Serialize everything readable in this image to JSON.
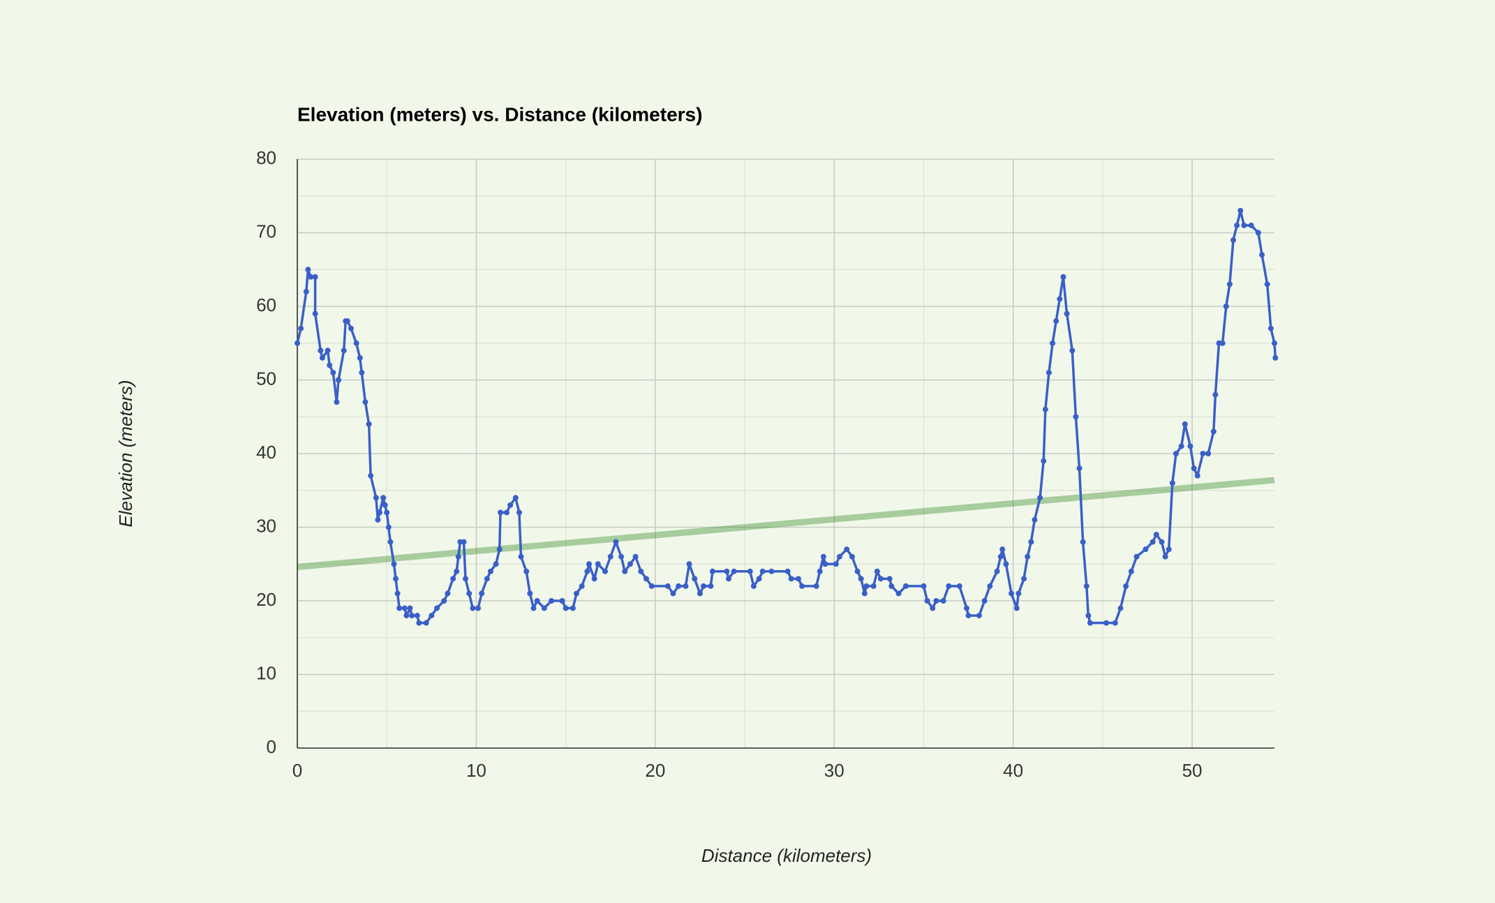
{
  "chart_data": {
    "type": "line",
    "title": "Elevation (meters) vs. Distance (kilometers)",
    "x_label": "Distance (kilometers)",
    "y_label": "Elevation (meters)",
    "xlim": [
      0,
      54.6
    ],
    "xticks": [
      0,
      10,
      20,
      30,
      40,
      50
    ],
    "xminorticks": [
      5,
      15,
      25,
      35,
      45
    ],
    "ylim": [
      0,
      80
    ],
    "yticks": [
      0,
      10,
      20,
      30,
      40,
      50,
      60,
      70,
      80
    ],
    "yminorticks": [
      5,
      15,
      25,
      35,
      45,
      55,
      65,
      75
    ],
    "grid": true,
    "series": [
      {
        "color": "#3a5fc8",
        "markers": true,
        "x": [
          0,
          0.2,
          0.5,
          0.6,
          0.75,
          1.0,
          1.0,
          1.3,
          1.4,
          1.7,
          1.8,
          2.0,
          2.2,
          2.3,
          2.6,
          2.7,
          2.8,
          3.0,
          3.3,
          3.5,
          3.6,
          3.8,
          4.0,
          4.1,
          4.4,
          4.5,
          4.6,
          4.8,
          4.9,
          5.0,
          5.1,
          5.2,
          5.4,
          5.5,
          5.6,
          5.7,
          6.0,
          6.1,
          6.3,
          6.4,
          6.7,
          6.8,
          7.2,
          7.5,
          7.8,
          8.2,
          8.4,
          8.7,
          8.9,
          9.0,
          9.1,
          9.3,
          9.4,
          9.6,
          9.8,
          10.1,
          10.3,
          10.6,
          10.8,
          11.1,
          11.3,
          11.35,
          11.7,
          11.9,
          12.2,
          12.4,
          12.5,
          12.8,
          13.0,
          13.2,
          13.4,
          13.8,
          14.2,
          14.8,
          15.0,
          15.4,
          15.6,
          15.9,
          16.2,
          16.3,
          16.6,
          16.8,
          17.2,
          17.5,
          17.8,
          18.1,
          18.3,
          18.6,
          18.9,
          19.2,
          19.5,
          19.8,
          20.7,
          21.0,
          21.3,
          21.7,
          21.9,
          22.2,
          22.5,
          22.7,
          23.1,
          23.2,
          24.0,
          24.1,
          24.4,
          25.3,
          25.5,
          25.8,
          26.0,
          26.5,
          27.4,
          27.6,
          28.0,
          28.2,
          29.0,
          29.2,
          29.4,
          29.5,
          30.1,
          30.3,
          30.7,
          31.0,
          31.3,
          31.5,
          31.7,
          31.8,
          32.2,
          32.4,
          32.6,
          33.1,
          33.2,
          33.6,
          34.0,
          35.0,
          35.2,
          35.5,
          35.7,
          36.1,
          36.4,
          37.0,
          37.4,
          37.5,
          38.1,
          38.4,
          38.7,
          39.1,
          39.3,
          39.4,
          39.6,
          39.9,
          40.2,
          40.3,
          40.6,
          40.8,
          41.0,
          41.2,
          41.5,
          41.7,
          41.8,
          42.0,
          42.2,
          42.4,
          42.6,
          42.8,
          43.0,
          43.3,
          43.5,
          43.7,
          43.9,
          44.1,
          44.2,
          44.3,
          45.2,
          45.7,
          46.0,
          46.3,
          46.6,
          46.9,
          47.4,
          47.8,
          48.0,
          48.3,
          48.5,
          48.7,
          48.9,
          49.1,
          49.4,
          49.6,
          49.9,
          50.1,
          50.3,
          50.6,
          50.9,
          51.2,
          51.3,
          51.5,
          51.7,
          51.9,
          52.1,
          52.3,
          52.5,
          52.7,
          52.9,
          53.3,
          53.7,
          53.9,
          54.2,
          54.4,
          54.6,
          54.65
        ],
        "values": [
          55,
          57,
          62,
          65,
          64,
          64,
          59,
          54,
          53,
          54,
          52,
          51,
          47,
          50,
          54,
          58,
          58,
          57,
          55,
          53,
          51,
          47,
          44,
          37,
          34,
          31,
          32,
          34,
          33,
          32,
          30,
          28,
          25,
          23,
          21,
          19,
          19,
          18,
          19,
          18,
          18,
          17,
          17,
          18,
          19,
          20,
          21,
          23,
          24,
          26,
          28,
          28,
          23,
          21,
          19,
          19,
          21,
          23,
          24,
          25,
          27,
          32,
          32,
          33,
          34,
          32,
          26,
          24,
          21,
          19,
          20,
          19,
          20,
          20,
          19,
          19,
          21,
          22,
          24,
          25,
          23,
          25,
          24,
          26,
          28,
          26,
          24,
          25,
          26,
          24,
          23,
          22,
          22,
          21,
          22,
          22,
          25,
          23,
          21,
          22,
          22,
          24,
          24,
          23,
          24,
          24,
          22,
          23,
          24,
          24,
          24,
          23,
          23,
          22,
          22,
          24,
          26,
          25,
          25,
          26,
          27,
          26,
          24,
          23,
          21,
          22,
          22,
          24,
          23,
          23,
          22,
          21,
          22,
          22,
          20,
          19,
          20,
          20,
          22,
          22,
          19,
          18,
          18,
          20,
          22,
          24,
          26,
          27,
          25,
          21,
          19,
          21,
          23,
          26,
          28,
          31,
          34,
          39,
          46,
          51,
          55,
          58,
          61,
          64,
          59,
          54,
          45,
          38,
          28,
          22,
          18,
          17,
          17,
          17,
          19,
          22,
          24,
          26,
          27,
          28,
          29,
          28,
          26,
          27,
          36,
          40,
          41,
          44,
          41,
          38,
          37,
          40,
          40,
          43,
          48,
          55,
          55,
          60,
          63,
          69,
          71,
          73,
          71,
          71,
          70,
          67,
          63,
          57,
          55,
          53
        ]
      },
      {
        "color": "#3a8a2a",
        "x": [
          0,
          54.6
        ],
        "values": [
          24.6,
          36.4
        ]
      }
    ]
  }
}
